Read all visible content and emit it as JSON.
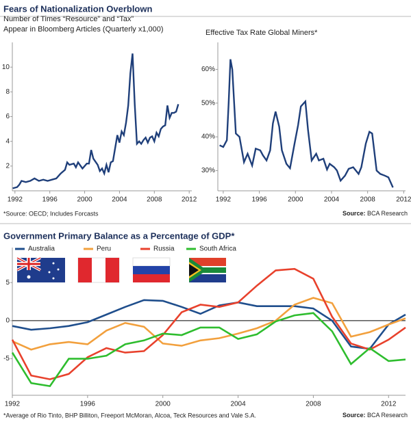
{
  "title": "Fears of Nationalization Overblown",
  "chart_data": [
    {
      "type": "line",
      "title_lines": [
        "Number of Times “Resource” and “Tax”",
        "Appear in Bloomberg Articles (Quarterly x1,000)"
      ],
      "note": "*Source: OECD; Includes Forcasts",
      "color": "#1f3f7a",
      "x": [
        1991.75,
        1992.25,
        1992.5,
        1992.75,
        1993.25,
        1993.75,
        1994.25,
        1994.75,
        1995.25,
        1995.75,
        1996.25,
        1996.75,
        1997.25,
        1997.75,
        1998.0,
        1998.25,
        1998.75,
        1999.0,
        1999.25,
        1999.75,
        2000.25,
        2000.5,
        2000.75,
        2001.0,
        2001.5,
        2001.75,
        2002.0,
        2002.25,
        2002.5,
        2002.75,
        2003.0,
        2003.25,
        2003.75,
        2004.0,
        2004.25,
        2004.5,
        2004.75,
        2005.0,
        2005.25,
        2005.5,
        2005.75,
        2006.0,
        2006.25,
        2006.5,
        2006.75,
        2007.0,
        2007.25,
        2007.5,
        2007.75,
        2008.0,
        2008.25,
        2008.5,
        2008.75,
        2009.0,
        2009.25,
        2009.5,
        2009.75,
        2010.0,
        2010.25,
        2010.5,
        2010.75
      ],
      "values": [
        0.2,
        0.3,
        0.5,
        0.8,
        0.7,
        0.8,
        1.0,
        0.8,
        0.9,
        0.8,
        0.9,
        1.0,
        1.4,
        1.7,
        2.3,
        2.1,
        2.2,
        1.9,
        2.3,
        1.8,
        2.2,
        2.2,
        3.3,
        2.6,
        2.1,
        1.6,
        1.8,
        1.4,
        2.1,
        1.5,
        2.3,
        2.4,
        4.5,
        3.9,
        4.8,
        4.5,
        5.5,
        6.9,
        9.5,
        11.1,
        7.0,
        3.8,
        4.0,
        3.8,
        4.1,
        4.3,
        3.9,
        4.3,
        4.4,
        4.0,
        4.7,
        4.4,
        5.0,
        5.2,
        5.3,
        6.9,
        5.9,
        6.3,
        6.3,
        6.4,
        7.0
      ],
      "xlim": [
        1991.7,
        2012.3
      ],
      "xticks": [
        1992,
        1996,
        2000,
        2004,
        2008,
        2012
      ],
      "ylim": [
        0,
        12
      ],
      "yticks": [
        2,
        4,
        6,
        8,
        10
      ]
    },
    {
      "type": "line",
      "title_lines": [
        "Effective Tax Rate Global Miners*"
      ],
      "source_label": "Source:",
      "source": "BCA Research",
      "color": "#1f3f7a",
      "x": [
        1991.6,
        1992,
        1992.4,
        1992.6,
        1992.8,
        1993,
        1993.4,
        1993.8,
        1994.3,
        1994.7,
        1995.2,
        1995.6,
        1996.1,
        1996.4,
        1996.8,
        1997.2,
        1997.5,
        1997.8,
        1998.2,
        1998.5,
        1999,
        1999.4,
        1999.9,
        2000.3,
        2000.6,
        2001.1,
        2001.4,
        2001.8,
        2002.3,
        2002.6,
        2003.1,
        2003.5,
        2003.8,
        2004.3,
        2004.6,
        2005,
        2005.5,
        2005.9,
        2006.4,
        2006.7,
        2007,
        2007.3,
        2007.8,
        2008.2,
        2008.5,
        2009,
        2009.4,
        2009.9,
        2010.3,
        2010.8
      ],
      "values": [
        37.5,
        37,
        39,
        50,
        63,
        60,
        41,
        40,
        32.5,
        35,
        31.5,
        36.5,
        36,
        34.5,
        33,
        36,
        44,
        47.5,
        43,
        36,
        32,
        30.7,
        38,
        43.5,
        49,
        50.5,
        42,
        33,
        35,
        33,
        33.5,
        30.3,
        32,
        31,
        30,
        27,
        28.5,
        30.5,
        31,
        30,
        29,
        31,
        38,
        41.5,
        41,
        30,
        29,
        28.5,
        28,
        25
      ],
      "xlim": [
        1991.4,
        2012.2
      ],
      "xticks": [
        1992,
        1996,
        2000,
        2004,
        2008,
        2012
      ],
      "ylim": [
        24,
        68
      ],
      "yticks": [
        {
          "value": 30,
          "label": "30%"
        },
        {
          "value": 40,
          "label": "40%"
        },
        {
          "value": 50,
          "label": "50%"
        },
        {
          "value": 60,
          "label": "60%"
        }
      ]
    },
    {
      "type": "line",
      "title_lines": [
        "Government Primary Balance as a Percentage of GDP*"
      ],
      "note": "*Average of Rio Tinto, BHP Billiton, Freeport McMoran, Alcoa, Teck Resources and Vale S.A.",
      "source_label": "Source:",
      "source": "BCA Research",
      "zero_line": true,
      "x": [
        1992,
        1993,
        1994,
        1995,
        1996,
        1997,
        1998,
        1999,
        2000,
        2001,
        2002,
        2003,
        2004,
        2005,
        2006,
        2007,
        2008,
        2009,
        2010,
        2011,
        2012,
        2012.9
      ],
      "series": [
        {
          "name": "Australia",
          "color": "#1f4e8c",
          "values": [
            -0.7,
            -1.2,
            -1.0,
            -0.7,
            -0.2,
            0.8,
            1.8,
            2.7,
            2.6,
            1.8,
            0.9,
            2.0,
            2.4,
            1.9,
            1.9,
            1.9,
            1.6,
            0.0,
            -3.4,
            -3.7,
            -0.5,
            0.8
          ]
        },
        {
          "name": "Peru",
          "color": "#f2a03d",
          "values": [
            -2.7,
            -3.8,
            -3.1,
            -2.8,
            -3.1,
            -1.3,
            -0.3,
            -0.8,
            -3.0,
            -3.3,
            -2.6,
            -2.3,
            -1.7,
            -1.0,
            0.0,
            2.1,
            3.0,
            2.3,
            -2.1,
            -1.5,
            -0.5,
            0.3
          ]
        },
        {
          "name": "Russia",
          "color": "#e8412c",
          "values": [
            -2.5,
            -7.2,
            -7.7,
            -7.0,
            -4.8,
            -3.6,
            -4.2,
            -4.0,
            -1.9,
            1.1,
            2.1,
            1.8,
            2.4,
            4.6,
            6.6,
            6.8,
            5.5,
            0.5,
            -3.0,
            -3.8,
            -2.5,
            -0.9
          ]
        },
        {
          "name": "South Africa",
          "color": "#2ebd2e",
          "values": [
            -4.2,
            -8.2,
            -8.6,
            -5.0,
            -5.0,
            -4.6,
            -3.1,
            -2.6,
            -1.7,
            -1.9,
            -0.9,
            -0.9,
            -2.4,
            -1.8,
            -0.1,
            0.7,
            1.0,
            -1.4,
            -5.7,
            -3.6,
            -5.3,
            -5.1
          ]
        }
      ],
      "xlim": [
        1992,
        2012.9
      ],
      "xticks": [
        1992,
        1996,
        2000,
        2004,
        2008,
        2012
      ],
      "ylim": [
        -9.8,
        9.6
      ],
      "yticks": [
        5,
        0,
        -5
      ]
    }
  ]
}
